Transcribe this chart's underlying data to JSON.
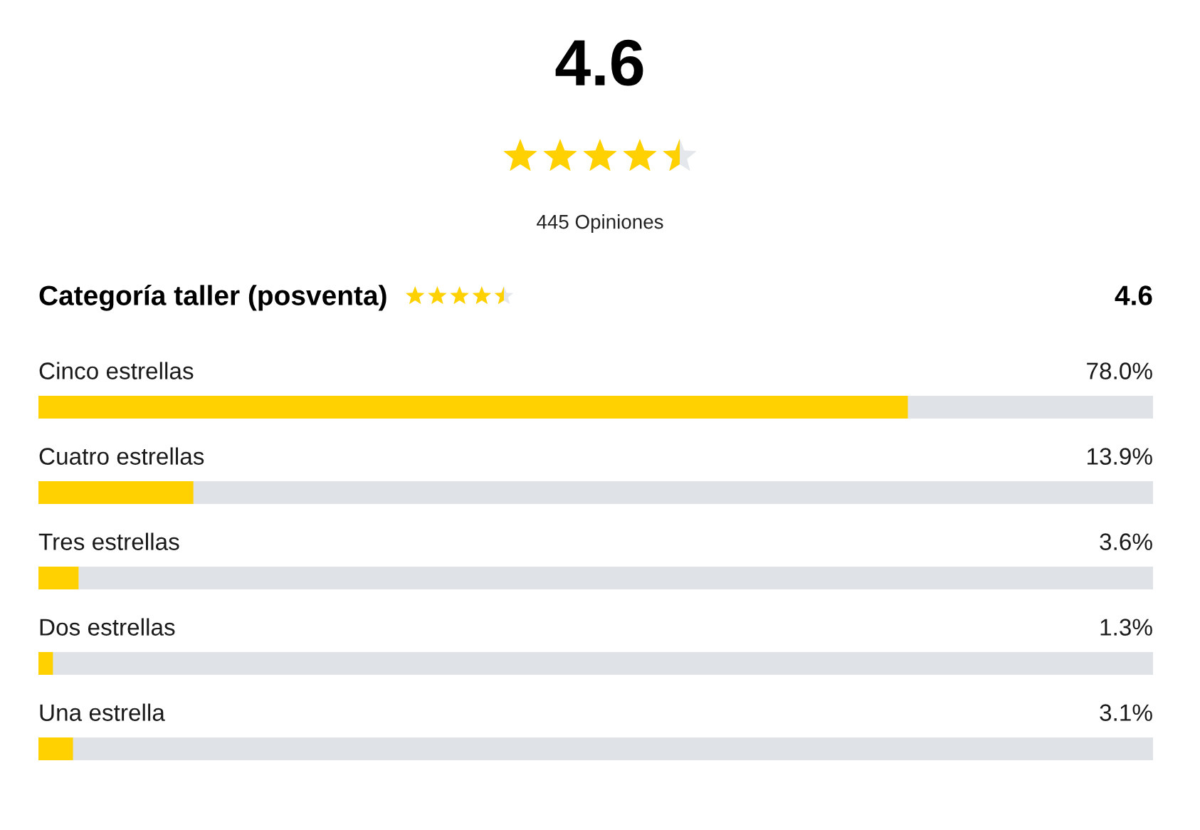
{
  "chart_data": [
    {
      "type": "other",
      "title": "4.6",
      "subtitle": "445 Opiniones"
    },
    {
      "type": "bar",
      "orientation": "horizontal",
      "title": "Categoría taller (posventa)",
      "annotations": [
        "4.6"
      ],
      "categories": [
        "Cinco estrellas",
        "Cuatro estrellas",
        "Tres estrellas",
        "Dos estrellas",
        "Una estrella"
      ],
      "values": [
        78.0,
        13.9,
        3.6,
        1.3,
        3.1
      ],
      "value_labels": [
        "78.0%",
        "13.9%",
        "3.6%",
        "1.3%",
        "3.1%"
      ],
      "color": "#ffd100",
      "xlim": [
        0,
        100
      ]
    }
  ]
}
